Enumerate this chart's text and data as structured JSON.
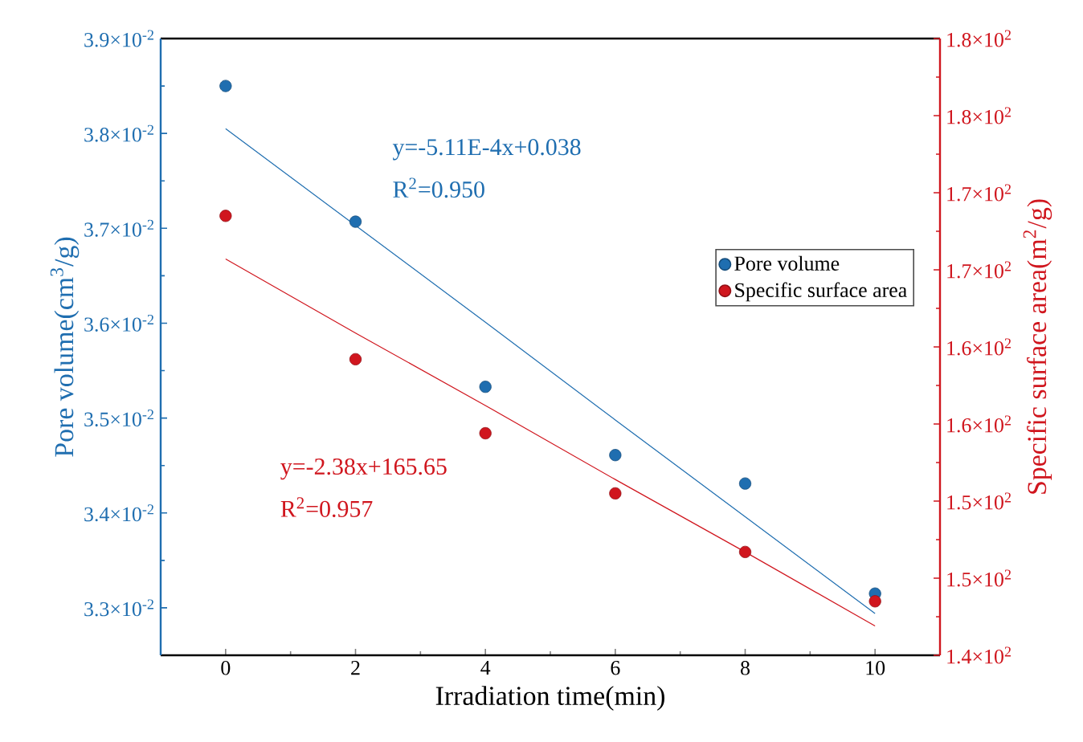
{
  "chart_data": {
    "type": "scatter",
    "xlabel": "Irradiation time(min)",
    "ylabel": "Pore volume(cm$^{3}$/g)",
    "y2label": "Specific surface area(m$^{2}$/g)",
    "x": [
      0,
      2,
      4,
      6,
      8,
      10
    ],
    "xlim": [
      -1,
      11
    ],
    "xticks": [
      0,
      2,
      4,
      6,
      8,
      10
    ],
    "ylim": [
      0.0325,
      0.039
    ],
    "yticks": [
      {
        "value": 0.033,
        "label": "3.3×10$^{-2}$"
      },
      {
        "value": 0.034,
        "label": "3.4×10$^{-2}$"
      },
      {
        "value": 0.035,
        "label": "3.5×10$^{-2}$"
      },
      {
        "value": 0.036,
        "label": "3.6×10$^{-2}$"
      },
      {
        "value": 0.037,
        "label": "3.7×10$^{-2}$"
      },
      {
        "value": 0.038,
        "label": "3.8×10$^{-2}$"
      },
      {
        "value": 0.039,
        "label": "3.9×10$^{-2}$"
      }
    ],
    "y2lim": [
      140,
      180
    ],
    "y2ticks": [
      {
        "value": 140,
        "label": "1.4×10$^{2}$"
      },
      {
        "value": 145,
        "label": "1.5×10$^{2}$"
      },
      {
        "value": 150,
        "label": "1.5×10$^{2}$"
      },
      {
        "value": 155,
        "label": "1.6×10$^{2}$"
      },
      {
        "value": 160,
        "label": "1.6×10$^{2}$"
      },
      {
        "value": 165,
        "label": "1.7×10$^{2}$"
      },
      {
        "value": 170,
        "label": "1.7×10$^{2}$"
      },
      {
        "value": 175,
        "label": "1.8×10$^{2}$"
      },
      {
        "value": 180,
        "label": "1.8×10$^{2}$"
      }
    ],
    "legend": "right",
    "annotations": [
      "y=-5.11E-4x+0.038",
      "R$^{2}$=0.950",
      "y=-2.38x+165.65",
      "R$^{2}$=0.957"
    ],
    "series": [
      {
        "name": "Pore volume",
        "marker": "circle",
        "color": "#1f6eb0",
        "values": [
          0.0385,
          0.03707,
          0.03533,
          0.03461,
          0.03431,
          0.03315
        ]
      },
      {
        "name": "Specific surface area",
        "marker": "circle",
        "color": "#d0161e",
        "axis": "y2",
        "values": [
          168.5,
          159.2,
          154.4,
          150.5,
          146.7,
          143.5
        ]
      },
      {
        "type": "line",
        "marker": "none",
        "color": "#1f6eb0",
        "values": [
          0.03805,
          0.03703,
          0.03601,
          0.03498,
          0.03396,
          0.03294
        ]
      },
      {
        "type": "line",
        "marker": "none",
        "color": "#d0161e",
        "axis": "y2",
        "values": [
          165.7,
          160.9,
          156.2,
          151.4,
          146.7,
          141.9
        ]
      }
    ]
  }
}
